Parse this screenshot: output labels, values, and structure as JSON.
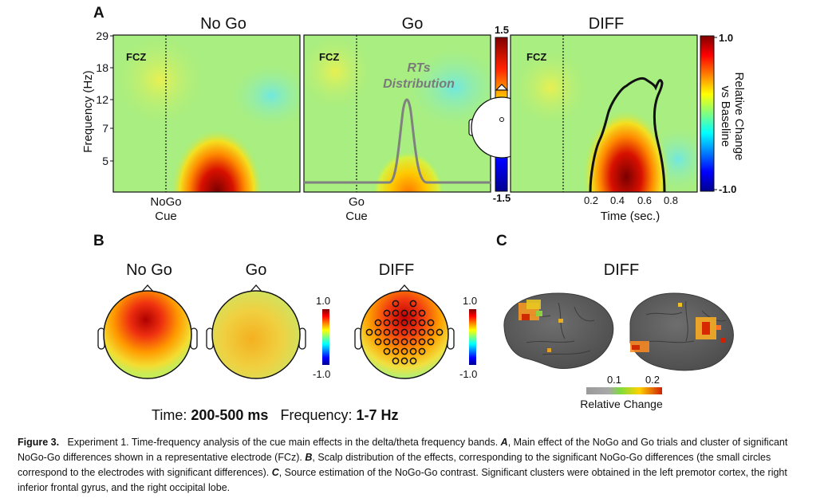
{
  "panels": {
    "A": {
      "label": "A",
      "titles": [
        "No Go",
        "Go",
        "DIFF"
      ],
      "ylabel": "Frequency (Hz)",
      "yticks": [
        "29",
        "18",
        "12",
        "7",
        "5"
      ],
      "electrode_label": "FCZ",
      "cue_labels": [
        [
          "NoGo",
          "Cue"
        ],
        [
          "Go",
          "Cue"
        ]
      ],
      "rt_label": [
        "RTs",
        "Distribution"
      ],
      "time_ticks": [
        "0.2",
        "0.4",
        "0.6",
        "0.8"
      ],
      "time_label": "Time (sec.)",
      "colorbar_left": {
        "max": "1.5",
        "min": "-1.5"
      },
      "colorbar_right": {
        "max": "1.0",
        "min": "-1.0",
        "label": [
          "Relative Change",
          "vs Baseline"
        ]
      }
    },
    "B": {
      "label": "B",
      "titles": [
        "No Go",
        "Go",
        "DIFF"
      ],
      "colorbar": {
        "max": "1.0",
        "min": "-1.0"
      },
      "footer_time_label": "Time:",
      "footer_time_value": "200-500 ms",
      "footer_freq_label": "Frequency:",
      "footer_freq_value": "1-7 Hz"
    },
    "C": {
      "label": "C",
      "title": "DIFF",
      "colorbar_ticks": [
        "0.1",
        "0.2"
      ],
      "colorbar_label": "Relative Change"
    }
  },
  "caption": {
    "figure_label": "Figure 3.",
    "text_1": "Experiment 1. Time-frequency analysis of the cue main effects in the delta/theta frequency bands.",
    "a_label": "A",
    "text_2": ", Main effect of the NoGo and Go trials and cluster of significant NoGo-Go differences shown in a representative electrode (FCz).",
    "b_label": "B",
    "text_3": ", Scalp distribution of the effects, corresponding to the significant NoGo-Go differences (the small circles correspond to the electrodes with significant differences).",
    "c_label": "C",
    "text_4": ", Source estimation of the NoGo-Go contrast. Significant clusters were obtained in the left premotor cortex, the right inferior frontal gyrus, and the right occipital lobe."
  }
}
